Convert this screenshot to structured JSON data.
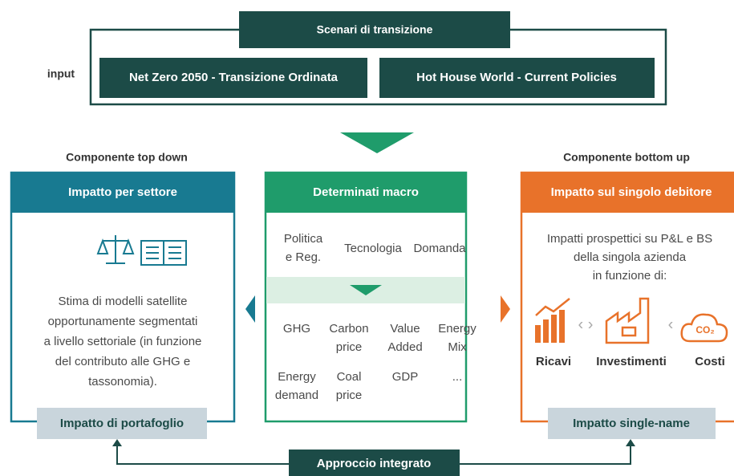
{
  "top": {
    "title": "Scenari di transizione",
    "input_label": "input",
    "scenarios": [
      "Net Zero 2050 - Transizione Ordinata",
      "Hot House World - Current Policies"
    ]
  },
  "left": {
    "heading": "Componente top down",
    "header": "Impatto per settore",
    "description": [
      "Stima di modelli satellite",
      "opportunamente segmentati",
      "a livello settoriale (in funzione",
      "del contributo alle GHG e",
      "tassonomia)."
    ],
    "footer": "Impatto di portafoglio"
  },
  "middle": {
    "header": "Determinati macro",
    "drivers_top": [
      [
        "Politica",
        "e Reg."
      ],
      [
        "Tecnologia"
      ],
      [
        "Domanda"
      ]
    ],
    "drivers_bottom": [
      [
        "GHG"
      ],
      [
        "Carbon",
        "price"
      ],
      [
        "Value",
        "Added"
      ],
      [
        "Energy",
        "Mix"
      ],
      [
        "Energy",
        "demand"
      ],
      [
        "Coal",
        "price"
      ],
      [
        "GDP"
      ],
      [
        "..."
      ]
    ]
  },
  "right": {
    "heading": "Componente bottom up",
    "header": "Impatto sul singolo debitore",
    "description": [
      "Impatti prospettici su P&L e BS",
      "della singola azienda",
      "in funzione di:"
    ],
    "items": [
      "Ricavi",
      "Investimenti",
      "Costi"
    ],
    "icon_text": "CO₂",
    "footer": "Impatto single-name"
  },
  "bottom": {
    "label": "Approccio integrato"
  }
}
